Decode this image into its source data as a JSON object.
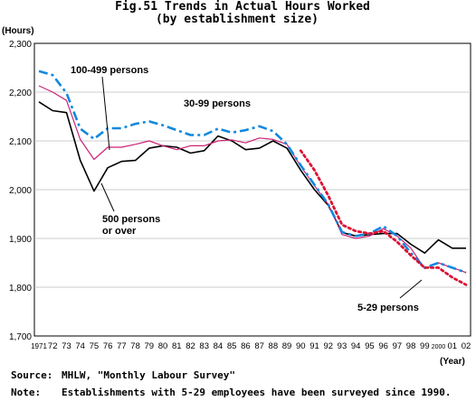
{
  "chart_data": {
    "type": "line",
    "title": "Fig.51 Trends in Actual Hours Worked",
    "subtitle": "(by establishment size)",
    "ylabel": "(Hours)",
    "xlabel": "(Year)",
    "ylim": [
      1700,
      2300
    ],
    "yticks": [
      "1,700",
      "1,800",
      "1,900",
      "2,000",
      "2,100",
      "2,200",
      "2,300"
    ],
    "ytick_values": [
      1700,
      1800,
      1900,
      2000,
      2100,
      2200,
      2300
    ],
    "x_labels": [
      "1971",
      "72",
      "73",
      "74",
      "75",
      "76",
      "77",
      "78",
      "79",
      "80",
      "81",
      "82",
      "83",
      "84",
      "85",
      "86",
      "87",
      "88",
      "89",
      "90",
      "91",
      "92",
      "93",
      "94",
      "95",
      "96",
      "97",
      "98",
      "99",
      "2000",
      "01",
      "02"
    ],
    "x": [
      1971,
      1972,
      1973,
      1974,
      1975,
      1976,
      1977,
      1978,
      1979,
      1980,
      1981,
      1982,
      1983,
      1984,
      1985,
      1986,
      1987,
      1988,
      1989,
      1990,
      1991,
      1992,
      1993,
      1994,
      1995,
      1996,
      1997,
      1998,
      1999,
      2000,
      2001,
      2002
    ],
    "grid": true,
    "series": [
      {
        "name": "500 persons or over",
        "color": "#000000",
        "style": "solid",
        "width": 1.6,
        "values": [
          2180,
          2162,
          2158,
          2060,
          1997,
          2045,
          2058,
          2060,
          2085,
          2090,
          2087,
          2075,
          2080,
          2110,
          2100,
          2082,
          2085,
          2100,
          2085,
          2040,
          2000,
          1968,
          1912,
          1905,
          1908,
          1910,
          1910,
          1888,
          1870,
          1897,
          1880,
          1880
        ]
      },
      {
        "name": "100-499 persons",
        "color": "#cc2277",
        "style": "solid",
        "width": 1.2,
        "values": [
          2213,
          2200,
          2183,
          2103,
          2062,
          2087,
          2087,
          2093,
          2100,
          2090,
          2082,
          2090,
          2090,
          2100,
          2102,
          2096,
          2106,
          2103,
          2093,
          2048,
          2008,
          1970,
          1908,
          1900,
          1905,
          1920,
          1905,
          1880,
          1838,
          1850,
          1840,
          1830
        ]
      },
      {
        "name": "30-99 persons",
        "color": "#1188dd",
        "style": "dashdot",
        "width": 2.6,
        "values": [
          2243,
          2235,
          2198,
          2125,
          2104,
          2126,
          2126,
          2135,
          2140,
          2132,
          2122,
          2112,
          2112,
          2125,
          2117,
          2122,
          2130,
          2120,
          2093,
          2050,
          2010,
          1970,
          1913,
          1905,
          1910,
          1925,
          1905,
          1870,
          1840,
          1850,
          1840,
          1830
        ]
      },
      {
        "name": "5-29 persons",
        "color": "#dd1133",
        "style": "dotted",
        "width": 2.8,
        "values": [
          null,
          null,
          null,
          null,
          null,
          null,
          null,
          null,
          null,
          null,
          null,
          null,
          null,
          null,
          null,
          null,
          null,
          null,
          null,
          2080,
          2040,
          1988,
          1928,
          1915,
          1910,
          1915,
          1893,
          1865,
          1840,
          1840,
          1820,
          1805
        ]
      }
    ],
    "annotations": [
      {
        "text": "100-499 persons"
      },
      {
        "text": "30-99 persons"
      },
      {
        "text": "500 persons"
      },
      {
        "text": "or over"
      },
      {
        "text": "5-29 persons"
      }
    ]
  },
  "footer": {
    "source_label": "Source:",
    "source_text": "MHLW, \"Monthly Labour Survey\"",
    "note_label": "Note:",
    "note_text": "Establishments with 5-29 employees have been surveyed since 1990."
  }
}
